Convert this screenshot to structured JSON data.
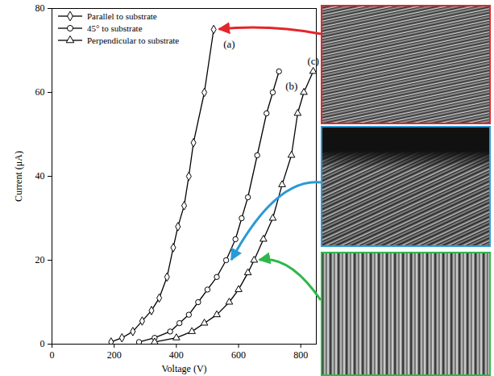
{
  "chart_data": {
    "type": "line",
    "x_label": "Voltage (V)",
    "y_label": "Current (μA)",
    "xlim": [
      0,
      850
    ],
    "xticks": [
      0,
      200,
      400,
      600,
      800
    ],
    "ylim": [
      0,
      80
    ],
    "yticks": [
      0,
      20,
      40,
      60,
      80
    ],
    "legend": "top-left",
    "series": [
      {
        "name": "Parallel to substrate",
        "label": "(a)",
        "marker": "diamond",
        "line_style": "solid",
        "color": "#000000",
        "x": [
          190,
          225,
          260,
          290,
          320,
          345,
          370,
          390,
          405,
          425,
          440,
          455,
          490,
          520
        ],
        "values": [
          0.5,
          1.5,
          3,
          5.5,
          8,
          11,
          16,
          23,
          28,
          33,
          40,
          48,
          60,
          75
        ]
      },
      {
        "name": "45° to substrate",
        "label": "(b)",
        "marker": "circle",
        "line_style": "solid",
        "color": "#000000",
        "x": [
          280,
          330,
          380,
          410,
          440,
          470,
          500,
          530,
          560,
          590,
          610,
          630,
          660,
          690,
          710,
          730
        ],
        "values": [
          0.5,
          1.5,
          3,
          5,
          7,
          10,
          13,
          16,
          20,
          25,
          30,
          35,
          45,
          55,
          60,
          65
        ]
      },
      {
        "name": "Perpendicular to substrate",
        "label": "(c)",
        "marker": "triangle",
        "line_style": "solid",
        "color": "#000000",
        "x": [
          330,
          400,
          450,
          490,
          530,
          570,
          600,
          630,
          650,
          680,
          710,
          740,
          770,
          790,
          810,
          840
        ],
        "values": [
          0.5,
          1.5,
          3,
          5,
          7,
          10,
          13,
          17,
          20,
          25,
          30,
          38,
          45,
          55,
          60,
          65
        ]
      }
    ]
  }
}
